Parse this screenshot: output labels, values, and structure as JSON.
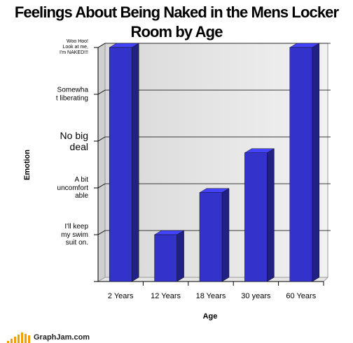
{
  "chart_data": {
    "type": "bar",
    "title": "Feelings About Being Naked in the Mens Locker Room by Age",
    "x_label": "Age",
    "y_label": "Emotion",
    "categories": [
      "2 Years",
      "12 Years",
      "18 Years",
      "30 years",
      "60 Years"
    ],
    "values": [
      5,
      1,
      1.9,
      2.75,
      5
    ],
    "color": "#3333cc",
    "ylim": [
      0,
      5
    ],
    "yticks": [
      {
        "value": 1,
        "label": "I'll keep\nmy swim\nsuit on."
      },
      {
        "value": 2,
        "label": "A bit\nuncomfort\nable"
      },
      {
        "value": 3,
        "label": "No big\ndeal"
      },
      {
        "value": 4,
        "label": "Somewha\nt liberating"
      },
      {
        "value": 5,
        "label": "Woo Hoo!\nLook at me,\nI'm NAKED!!!"
      }
    ],
    "grid": true,
    "footer": "GraphJam.com"
  }
}
